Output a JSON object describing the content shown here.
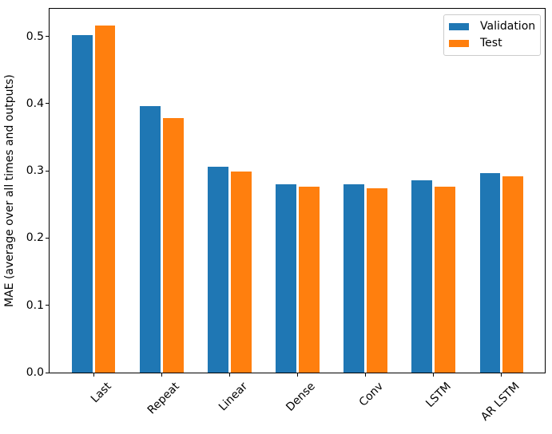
{
  "chart_data": {
    "type": "bar",
    "title": "",
    "xlabel": "",
    "ylabel": "MAE (average over all times and outputs)",
    "categories": [
      "Last",
      "Repeat",
      "Linear",
      "Dense",
      "Conv",
      "LSTM",
      "AR LSTM"
    ],
    "series": [
      {
        "name": "Validation",
        "color": "#1f77b4",
        "values": [
          0.502,
          0.396,
          0.306,
          0.28,
          0.28,
          0.286,
          0.297
        ]
      },
      {
        "name": "Test",
        "color": "#ff7f0e",
        "values": [
          0.516,
          0.378,
          0.299,
          0.276,
          0.274,
          0.277,
          0.292
        ]
      }
    ],
    "ylim": [
      0,
      0.541
    ],
    "yticks": [
      0.0,
      0.1,
      0.2,
      0.3,
      0.4,
      0.5
    ],
    "x_tick_rotation_deg": 45,
    "grid": false,
    "legend": {
      "position": "upper right",
      "entries": [
        "Validation",
        "Test"
      ]
    }
  },
  "figure": {
    "background_color": "#ffffff",
    "spine_color": "#000000",
    "text_color": "#000000"
  }
}
